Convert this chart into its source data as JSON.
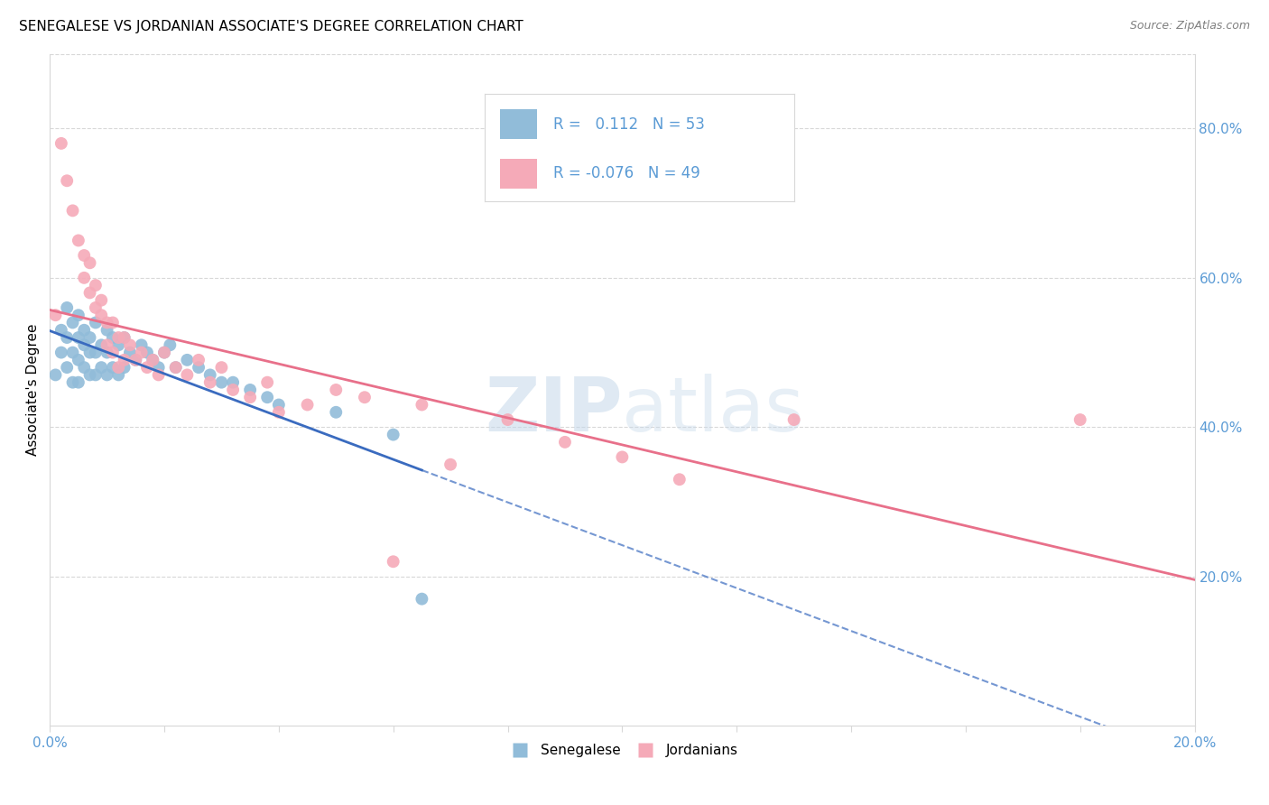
{
  "title": "SENEGALESE VS JORDANIAN ASSOCIATE'S DEGREE CORRELATION CHART",
  "source": "Source: ZipAtlas.com",
  "ylabel": "Associate's Degree",
  "right_yticks": [
    "80.0%",
    "60.0%",
    "40.0%",
    "20.0%"
  ],
  "right_ytick_vals": [
    0.8,
    0.6,
    0.4,
    0.2
  ],
  "xlim": [
    0.0,
    0.2
  ],
  "ylim": [
    0.0,
    0.9
  ],
  "blue_color": "#91bcd9",
  "pink_color": "#f5aab8",
  "blue_line_color": "#3a6bbf",
  "pink_line_color": "#e8708a",
  "watermark_color": "#c5d8ea",
  "grid_color": "#d8d8d8",
  "tick_label_color": "#5b9bd5",
  "senegalese_x": [
    0.001,
    0.002,
    0.002,
    0.003,
    0.003,
    0.003,
    0.004,
    0.004,
    0.004,
    0.005,
    0.005,
    0.005,
    0.005,
    0.006,
    0.006,
    0.006,
    0.007,
    0.007,
    0.007,
    0.008,
    0.008,
    0.008,
    0.009,
    0.009,
    0.01,
    0.01,
    0.01,
    0.011,
    0.011,
    0.012,
    0.012,
    0.013,
    0.013,
    0.014,
    0.015,
    0.016,
    0.017,
    0.018,
    0.019,
    0.02,
    0.021,
    0.022,
    0.024,
    0.026,
    0.028,
    0.03,
    0.032,
    0.035,
    0.038,
    0.04,
    0.05,
    0.06,
    0.065
  ],
  "senegalese_y": [
    0.47,
    0.53,
    0.5,
    0.56,
    0.52,
    0.48,
    0.54,
    0.5,
    0.46,
    0.55,
    0.52,
    0.49,
    0.46,
    0.53,
    0.51,
    0.48,
    0.52,
    0.5,
    0.47,
    0.54,
    0.5,
    0.47,
    0.51,
    0.48,
    0.53,
    0.5,
    0.47,
    0.52,
    0.48,
    0.51,
    0.47,
    0.52,
    0.48,
    0.5,
    0.49,
    0.51,
    0.5,
    0.49,
    0.48,
    0.5,
    0.51,
    0.48,
    0.49,
    0.48,
    0.47,
    0.46,
    0.46,
    0.45,
    0.44,
    0.43,
    0.42,
    0.39,
    0.17
  ],
  "jordanian_x": [
    0.001,
    0.002,
    0.003,
    0.004,
    0.005,
    0.006,
    0.006,
    0.007,
    0.007,
    0.008,
    0.008,
    0.009,
    0.009,
    0.01,
    0.01,
    0.011,
    0.011,
    0.012,
    0.012,
    0.013,
    0.013,
    0.014,
    0.015,
    0.016,
    0.017,
    0.018,
    0.019,
    0.02,
    0.022,
    0.024,
    0.026,
    0.028,
    0.03,
    0.032,
    0.035,
    0.038,
    0.04,
    0.045,
    0.05,
    0.055,
    0.06,
    0.065,
    0.07,
    0.08,
    0.09,
    0.1,
    0.11,
    0.13,
    0.18
  ],
  "jordanian_y": [
    0.55,
    0.78,
    0.73,
    0.69,
    0.65,
    0.63,
    0.6,
    0.58,
    0.62,
    0.56,
    0.59,
    0.55,
    0.57,
    0.54,
    0.51,
    0.54,
    0.5,
    0.52,
    0.48,
    0.52,
    0.49,
    0.51,
    0.49,
    0.5,
    0.48,
    0.49,
    0.47,
    0.5,
    0.48,
    0.47,
    0.49,
    0.46,
    0.48,
    0.45,
    0.44,
    0.46,
    0.42,
    0.43,
    0.45,
    0.44,
    0.22,
    0.43,
    0.35,
    0.41,
    0.38,
    0.36,
    0.33,
    0.41,
    0.41
  ]
}
